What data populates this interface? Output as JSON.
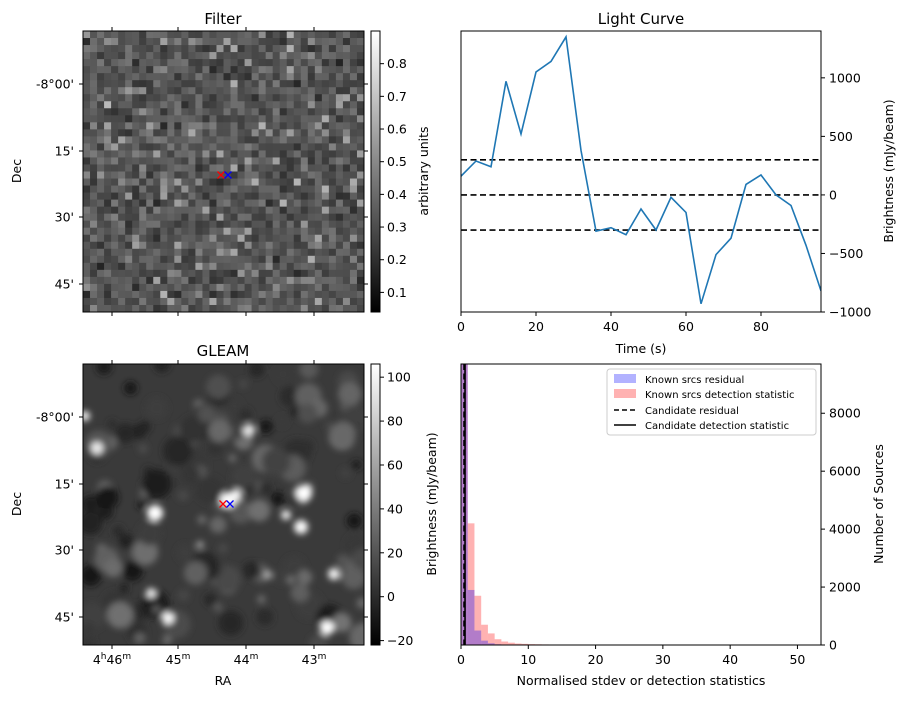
{
  "chart_data": [
    {
      "type": "heatmap",
      "title": "Filter",
      "ylabel": "Dec",
      "y_tick_labels": [
        "-8°00'",
        "15'",
        "30'",
        "45'"
      ],
      "colorbar": {
        "label": "arbitrary units",
        "range": [
          0.04,
          0.9
        ],
        "ticks": [
          0.1,
          0.2,
          0.3,
          0.4,
          0.5,
          0.6,
          0.7,
          0.8
        ],
        "tick_labels": [
          "0.1",
          "0.2",
          "0.3",
          "0.4",
          "0.5",
          "0.6",
          "0.7",
          "0.8"
        ],
        "colormap": "gray"
      },
      "markers": [
        {
          "symbol": "x",
          "color": "#ff0000"
        },
        {
          "symbol": "x",
          "color": "#0000ff"
        }
      ]
    },
    {
      "type": "line",
      "title": "Light Curve",
      "xlabel": "Time (s)",
      "ylabel": "Brightness (mJy/beam)",
      "xlim": [
        0,
        96
      ],
      "ylim": [
        -1000,
        1400
      ],
      "x_ticks": [
        0,
        20,
        40,
        60,
        80
      ],
      "x_tick_labels": [
        "0",
        "20",
        "40",
        "60",
        "80"
      ],
      "y_ticks": [
        -1000,
        -500,
        0,
        500,
        1000
      ],
      "y_tick_labels": [
        "−1000",
        "−500",
        "0",
        "500",
        "1000"
      ],
      "y_axis_side": "right",
      "series": [
        {
          "color": "#1f77b4",
          "x": [
            0,
            4,
            8,
            12,
            16,
            20,
            24,
            28,
            32,
            36,
            40,
            44,
            48,
            52,
            56,
            60,
            64,
            68,
            72,
            76,
            80,
            84,
            88,
            92,
            96
          ],
          "values": [
            160,
            290,
            240,
            970,
            520,
            1050,
            1140,
            1350,
            380,
            -310,
            -280,
            -340,
            -120,
            -300,
            -20,
            -150,
            -930,
            -510,
            -370,
            90,
            170,
            0,
            -90,
            -430,
            -820
          ]
        }
      ],
      "hlines": [
        {
          "y": 300,
          "style": "dashed",
          "color": "#000000"
        },
        {
          "y": 0,
          "style": "dashed",
          "color": "#000000"
        },
        {
          "y": -300,
          "style": "dashed",
          "color": "#000000"
        }
      ]
    },
    {
      "type": "heatmap",
      "title": "GLEAM",
      "xlabel": "RA",
      "ylabel": "Dec",
      "x_tick_labels": [
        {
          "h": "4",
          "hsup": "h",
          "m": "46",
          "msup": "m"
        },
        {
          "h": "",
          "hsup": "",
          "m": "45",
          "msup": "m"
        },
        {
          "h": "",
          "hsup": "",
          "m": "44",
          "msup": "m"
        },
        {
          "h": "",
          "hsup": "",
          "m": "43",
          "msup": "m"
        }
      ],
      "y_tick_labels": [
        "-8°00'",
        "15'",
        "30'",
        "45'"
      ],
      "colorbar": {
        "label": "Brightness (mJy/beam)",
        "range": [
          -22,
          106
        ],
        "ticks": [
          -20,
          0,
          20,
          40,
          60,
          80,
          100
        ],
        "tick_labels": [
          "−20",
          "0",
          "20",
          "40",
          "60",
          "80",
          "100"
        ],
        "colormap": "gray"
      },
      "markers": [
        {
          "symbol": "x",
          "color": "#ff0000"
        },
        {
          "symbol": "x",
          "color": "#0000ff"
        }
      ]
    },
    {
      "type": "bar",
      "subtype": "histogram",
      "xlabel": "Normalised stdev or detection statistics",
      "ylabel": "Number of Sources",
      "xlim": [
        0,
        53.5
      ],
      "ylim": [
        0,
        9700
      ],
      "x_ticks": [
        0,
        10,
        20,
        30,
        40,
        50
      ],
      "x_tick_labels": [
        "0",
        "10",
        "20",
        "30",
        "40",
        "50"
      ],
      "y_ticks": [
        0,
        2000,
        4000,
        6000,
        8000
      ],
      "y_tick_labels": [
        "0",
        "2000",
        "4000",
        "6000",
        "8000"
      ],
      "y_axis_side": "right",
      "legend_position": "top-right",
      "bin_width": 1,
      "series": [
        {
          "name": "Known srcs residual",
          "color": "#0000ff",
          "bin_starts": [
            0,
            1,
            2,
            3,
            4,
            5,
            6,
            7
          ],
          "values": [
            9700,
            1900,
            500,
            150,
            60,
            25,
            10,
            5
          ]
        },
        {
          "name": "Known srcs detection statistic",
          "color": "#ff0000",
          "bin_starts": [
            0,
            1,
            2,
            3,
            4,
            5,
            6,
            7,
            8,
            9,
            10,
            11,
            12,
            13,
            14,
            15,
            16,
            17,
            18,
            19,
            20,
            23,
            24,
            50
          ],
          "values": [
            9700,
            4200,
            1700,
            700,
            400,
            200,
            120,
            80,
            50,
            40,
            30,
            25,
            20,
            15,
            10,
            8,
            6,
            5,
            4,
            3,
            3,
            2,
            2,
            1
          ]
        }
      ],
      "vlines": [
        {
          "name": "Candidate residual",
          "x": 0.45,
          "style": "dashed",
          "color": "#000000"
        },
        {
          "name": "Candidate detection statistic",
          "x": 0.6,
          "style": "solid",
          "color": "#000000"
        }
      ]
    }
  ]
}
